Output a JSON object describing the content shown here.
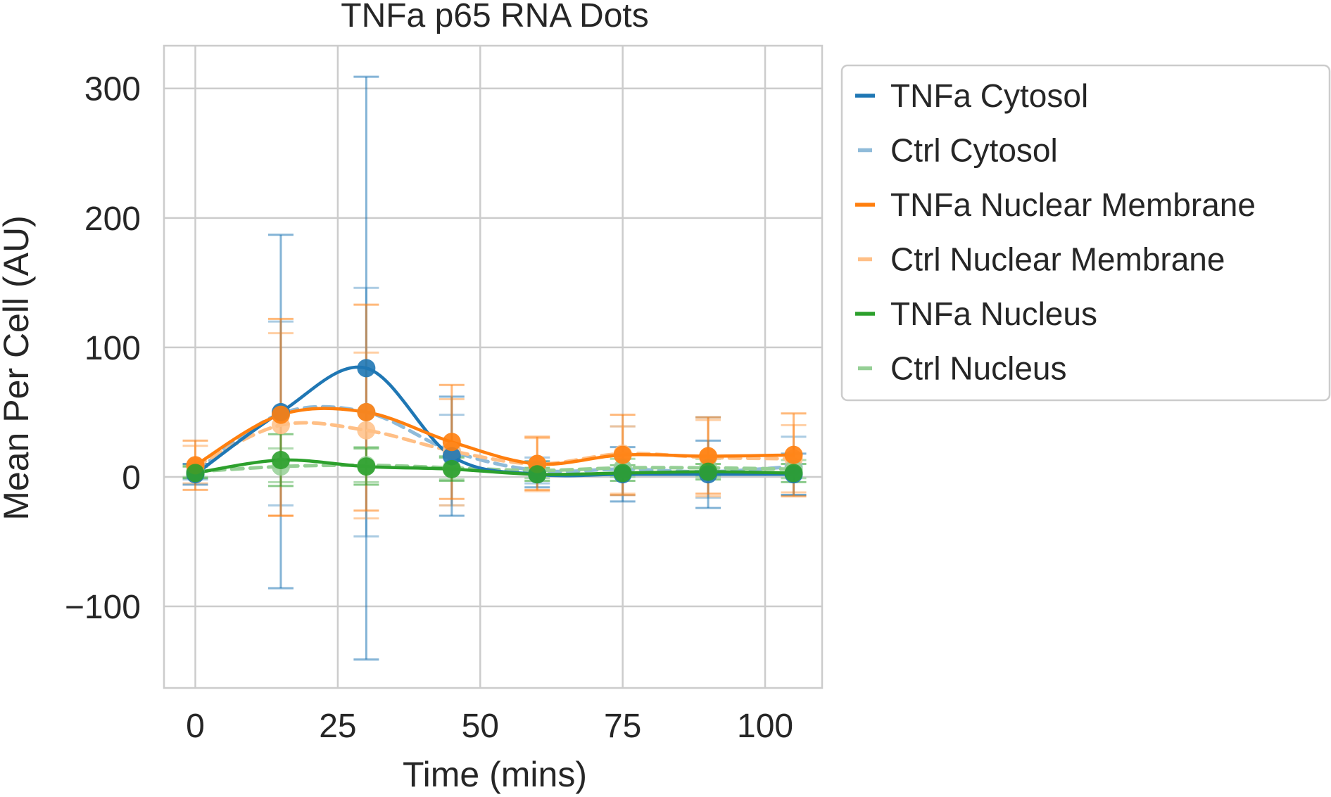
{
  "chart_data": {
    "type": "line",
    "title": "TNFa p65 RNA Dots",
    "xlabel": "Time (mins)",
    "ylabel": "Mean Per Cell (AU)",
    "xlim": [
      -5.5,
      110
    ],
    "ylim": [
      -163,
      333
    ],
    "xticks": [
      0,
      25,
      50,
      75,
      100
    ],
    "yticks": [
      -100,
      0,
      100,
      200,
      300
    ],
    "ytick_labels": [
      "−100",
      "0",
      "100",
      "200",
      "300"
    ],
    "grid": true,
    "legend_position": "outside-right",
    "x": [
      0,
      15,
      30,
      45,
      60,
      75,
      90,
      105
    ],
    "series": [
      {
        "name": "TNFa Cytosol",
        "color": "#1f77b4",
        "style": "solid",
        "values": [
          2,
          50,
          84,
          16,
          2,
          2,
          2,
          2
        ],
        "err_low": [
          -6,
          -86,
          -141,
          -30,
          -8,
          -19,
          -24,
          -14
        ],
        "err_high": [
          10,
          187,
          309,
          62,
          12,
          23,
          28,
          18
        ]
      },
      {
        "name": "Ctrl Cytosol",
        "color": "#8fbbd9",
        "style": "dashed",
        "values": [
          4,
          49,
          50,
          20,
          5,
          6,
          4,
          8
        ],
        "err_low": [
          -2,
          -22,
          -46,
          -22,
          -5,
          -14,
          -16,
          -14
        ],
        "err_high": [
          10,
          120,
          146,
          48,
          15,
          39,
          46,
          31
        ]
      },
      {
        "name": "TNFa Nuclear Membrane",
        "color": "#ff7f0e",
        "style": "solid",
        "values": [
          9,
          48,
          50,
          27,
          10,
          17,
          16,
          17
        ],
        "err_low": [
          -10,
          -30,
          -26,
          -17,
          -10,
          -14,
          -13,
          -15
        ],
        "err_high": [
          28,
          122,
          133,
          71,
          31,
          48,
          46,
          49
        ]
      },
      {
        "name": "Ctrl Nuclear Membrane",
        "color": "#ffbf86",
        "style": "dashed",
        "values": [
          8,
          40,
          36,
          20,
          10,
          18,
          15,
          14
        ],
        "err_low": [
          -5,
          -30,
          -32,
          -22,
          -11,
          -13,
          -15,
          -12
        ],
        "err_high": [
          24,
          111,
          96,
          60,
          30,
          39,
          44,
          40
        ]
      },
      {
        "name": "TNFa Nucleus",
        "color": "#2ca02c",
        "style": "solid",
        "values": [
          3,
          13,
          8,
          6,
          2,
          3,
          4,
          3
        ],
        "err_low": [
          -1,
          -7,
          -6,
          -3,
          -3,
          -3,
          -2,
          -4
        ],
        "err_high": [
          8,
          33,
          22,
          15,
          7,
          9,
          10,
          10
        ]
      },
      {
        "name": "Ctrl Nucleus",
        "color": "#95cf95",
        "style": "dashed",
        "values": [
          4,
          8,
          9,
          7,
          5,
          7,
          7,
          6
        ],
        "err_low": [
          0,
          -4,
          -4,
          -2,
          -1,
          0,
          0,
          -1
        ],
        "err_high": [
          9,
          22,
          23,
          16,
          12,
          14,
          14,
          13
        ]
      }
    ]
  }
}
